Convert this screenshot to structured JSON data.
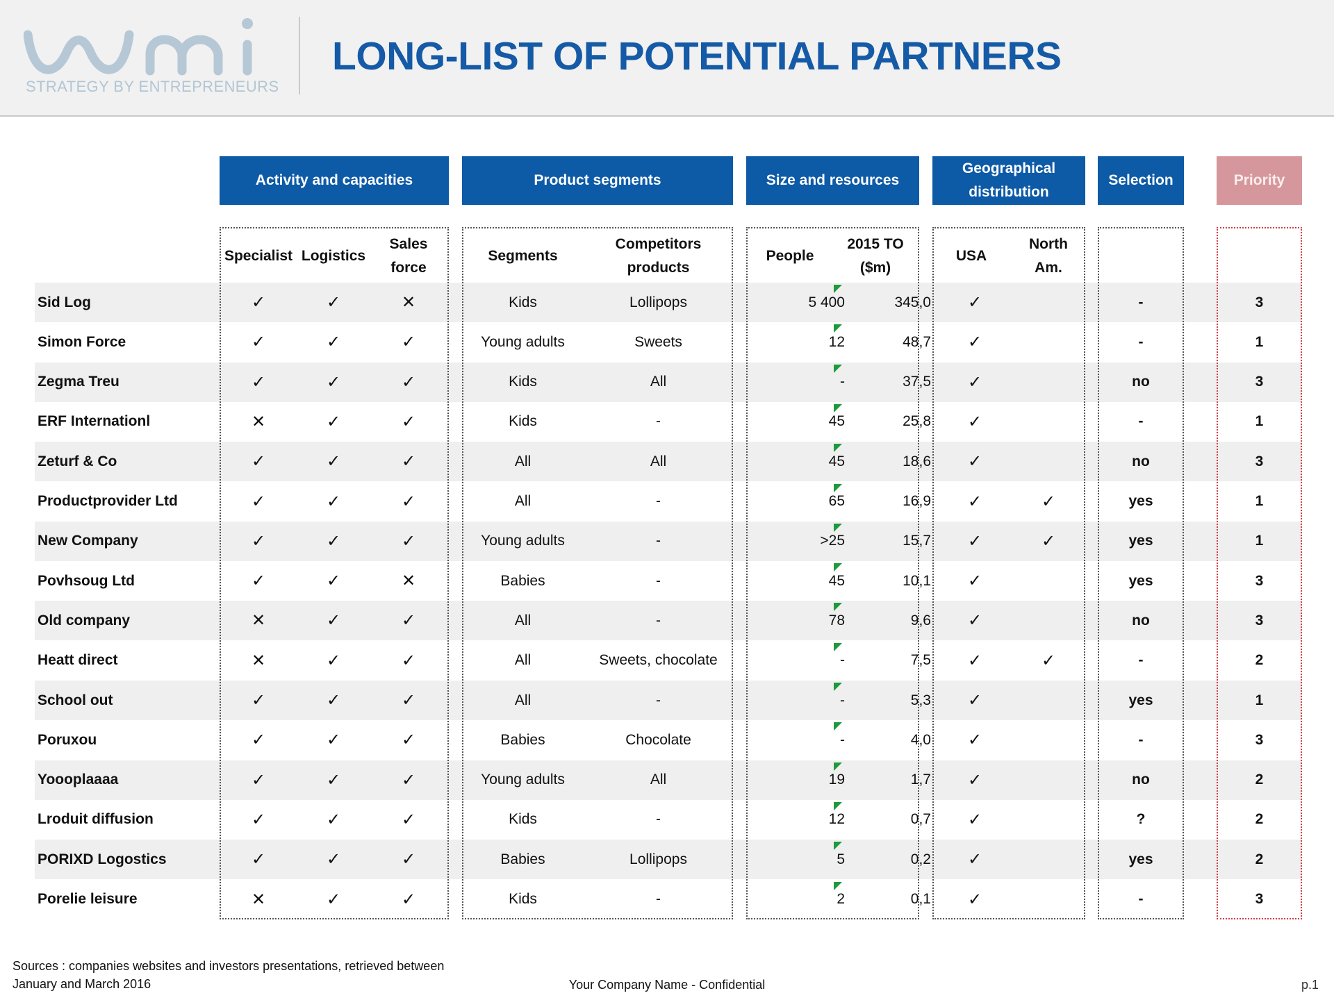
{
  "logo": {
    "tagline": "STRATEGY BY ENTREPRENEURS"
  },
  "title": "LONG-LIST OF POTENTIAL PARTNERS",
  "groups": [
    {
      "label": "Activity and capacities"
    },
    {
      "label": "Product segments"
    },
    {
      "label": "Size and resources"
    },
    {
      "label": "Geographical distribution"
    },
    {
      "label": "Selection"
    },
    {
      "label": "Priority"
    }
  ],
  "columns": {
    "specialist": "Specialist",
    "logistics": "Logistics",
    "sales_force": "Sales force",
    "segments": "Segments",
    "competitors": "Competitors products",
    "people": "People",
    "to2015": "2015 TO ($m)",
    "usa": "USA",
    "north_am": "North Am."
  },
  "rows": [
    {
      "name": "Sid Log",
      "specialist": "✓",
      "logistics": "✓",
      "sales_force": "✕",
      "segment": "Kids",
      "competitors": "Lollipops",
      "people": "5 400",
      "to": "345,0",
      "usa": "✓",
      "north_am": "",
      "selection": "-",
      "priority": "3"
    },
    {
      "name": "Simon Force",
      "specialist": "✓",
      "logistics": "✓",
      "sales_force": "✓",
      "segment": "Young adults",
      "competitors": "Sweets",
      "people": "12",
      "to": "48,7",
      "usa": "✓",
      "north_am": "",
      "selection": "-",
      "priority": "1"
    },
    {
      "name": "Zegma Treu",
      "specialist": "✓",
      "logistics": "✓",
      "sales_force": "✓",
      "segment": "Kids",
      "competitors": "All",
      "people": "-",
      "to": "37,5",
      "usa": "✓",
      "north_am": "",
      "selection": "no",
      "priority": "3"
    },
    {
      "name": "ERF Internationl",
      "specialist": "✕",
      "logistics": "✓",
      "sales_force": "✓",
      "segment": "Kids",
      "competitors": "-",
      "people": "45",
      "to": "25,8",
      "usa": "✓",
      "north_am": "",
      "selection": "-",
      "priority": "1"
    },
    {
      "name": "Zeturf & Co",
      "specialist": "✓",
      "logistics": "✓",
      "sales_force": "✓",
      "segment": "All",
      "competitors": "All",
      "people": "45",
      "to": "18,6",
      "usa": "✓",
      "north_am": "",
      "selection": "no",
      "priority": "3"
    },
    {
      "name": "Productprovider Ltd",
      "specialist": "✓",
      "logistics": "✓",
      "sales_force": "✓",
      "segment": "All",
      "competitors": "-",
      "people": "65",
      "to": "16,9",
      "usa": "✓",
      "north_am": "✓",
      "selection": "yes",
      "priority": "1"
    },
    {
      "name": "New Company",
      "specialist": "✓",
      "logistics": "✓",
      "sales_force": "✓",
      "segment": "Young adults",
      "competitors": "-",
      "people": ">25",
      "to": "15,7",
      "usa": "✓",
      "north_am": "✓",
      "selection": "yes",
      "priority": "1"
    },
    {
      "name": "Povhsoug Ltd",
      "specialist": "✓",
      "logistics": "✓",
      "sales_force": "✕",
      "segment": "Babies",
      "competitors": "-",
      "people": "45",
      "to": "10,1",
      "usa": "✓",
      "north_am": "",
      "selection": "yes",
      "priority": "3"
    },
    {
      "name": "Old company",
      "specialist": "✕",
      "logistics": "✓",
      "sales_force": "✓",
      "segment": "All",
      "competitors": "-",
      "people": "78",
      "to": "9,6",
      "usa": "✓",
      "north_am": "",
      "selection": "no",
      "priority": "3"
    },
    {
      "name": "Heatt direct",
      "specialist": "✕",
      "logistics": "✓",
      "sales_force": "✓",
      "segment": "All",
      "competitors": "Sweets, chocolate",
      "people": "-",
      "to": "7,5",
      "usa": "✓",
      "north_am": "✓",
      "selection": "-",
      "priority": "2"
    },
    {
      "name": "School out",
      "specialist": "✓",
      "logistics": "✓",
      "sales_force": "✓",
      "segment": "All",
      "competitors": "-",
      "people": "-",
      "to": "5,3",
      "usa": "✓",
      "north_am": "",
      "selection": "yes",
      "priority": "1"
    },
    {
      "name": "Poruxou",
      "specialist": "✓",
      "logistics": "✓",
      "sales_force": "✓",
      "segment": "Babies",
      "competitors": "Chocolate",
      "people": "-",
      "to": "4,0",
      "usa": "✓",
      "north_am": "",
      "selection": "-",
      "priority": "3"
    },
    {
      "name": "Yoooplaaaa",
      "specialist": "✓",
      "logistics": "✓",
      "sales_force": "✓",
      "segment": "Young adults",
      "competitors": "All",
      "people": "19",
      "to": "1,7",
      "usa": "✓",
      "north_am": "",
      "selection": "no",
      "priority": "2"
    },
    {
      "name": "Lroduit diffusion",
      "specialist": "✓",
      "logistics": "✓",
      "sales_force": "✓",
      "segment": "Kids",
      "competitors": "-",
      "people": "12",
      "to": "0,7",
      "usa": "✓",
      "north_am": "",
      "selection": "?",
      "priority": "2"
    },
    {
      "name": "PORIXD Logostics",
      "specialist": "✓",
      "logistics": "✓",
      "sales_force": "✓",
      "segment": "Babies",
      "competitors": "Lollipops",
      "people": "5",
      "to": "0,2",
      "usa": "✓",
      "north_am": "",
      "selection": "yes",
      "priority": "2"
    },
    {
      "name": "Porelie leisure",
      "specialist": "✕",
      "logistics": "✓",
      "sales_force": "✓",
      "segment": "Kids",
      "competitors": "-",
      "people": "2",
      "to": "0,1",
      "usa": "✓",
      "north_am": "",
      "selection": "-",
      "priority": "3"
    }
  ],
  "footer": {
    "sources_line1": "Sources : companies websites and investors presentations, retrieved between",
    "sources_line2": "January and March 2016",
    "company": "Your Company Name - Confidential",
    "page": "p.1"
  },
  "colors": {
    "brand_blue": "#155aa6",
    "group_header": "#0d5aa7",
    "priority_header": "#d6979c",
    "priority_border": "#d43c45",
    "stripe": "#efefef",
    "comment_marker": "#1e9a3a"
  }
}
